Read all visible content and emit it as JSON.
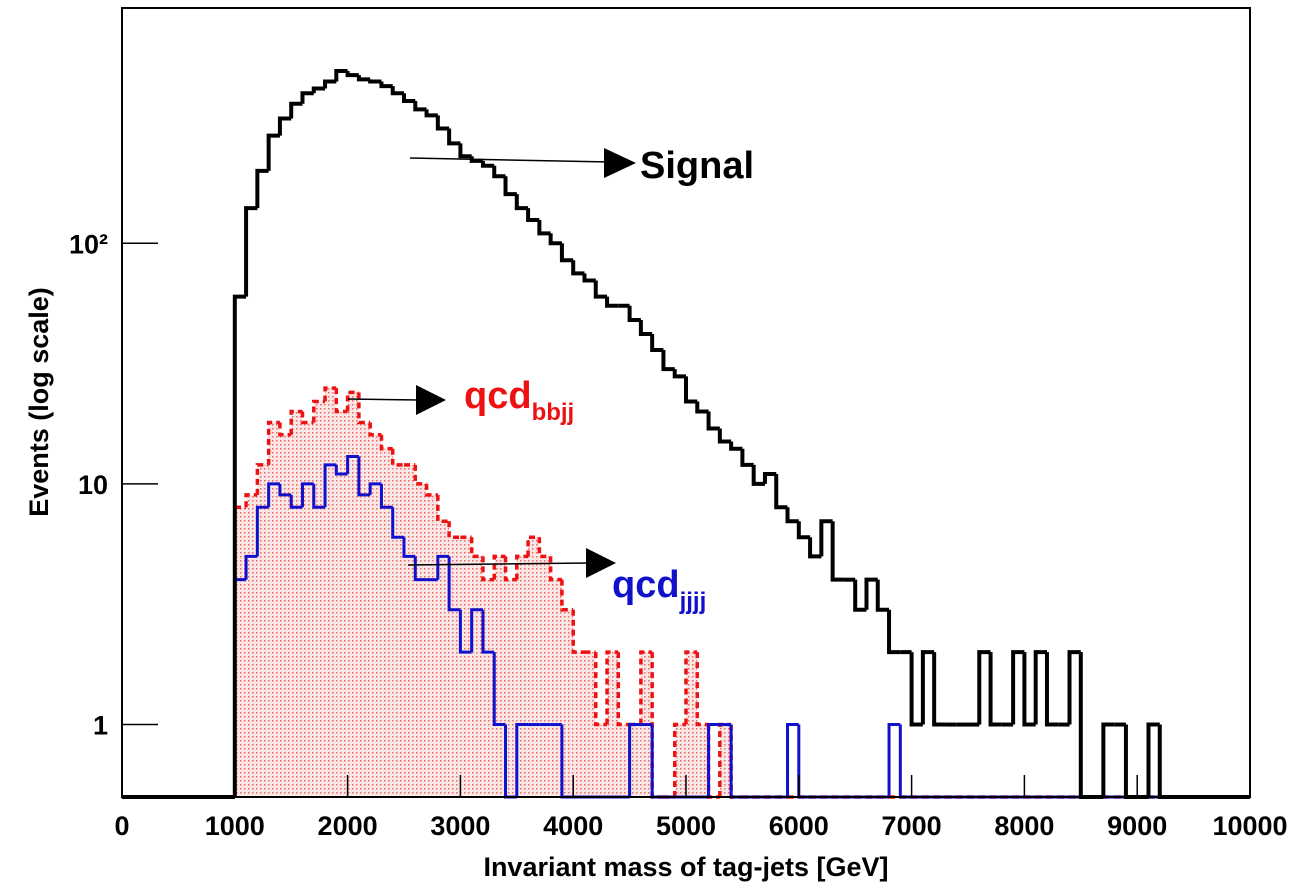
{
  "chart_data": {
    "type": "histogram",
    "xlabel": "Invariant mass of tag-jets [GeV]",
    "ylabel": "Events (log scale)",
    "log_y": true,
    "bins": [
      0,
      100,
      200,
      300,
      400,
      500,
      600,
      700,
      800,
      900,
      1000,
      1100,
      1200,
      1300,
      1400,
      1500,
      1600,
      1700,
      1800,
      1900,
      2000,
      2100,
      2200,
      2300,
      2400,
      2500,
      2600,
      2700,
      2800,
      2900,
      3000,
      3100,
      3200,
      3300,
      3400,
      3500,
      3600,
      3700,
      3800,
      3900,
      4000,
      4100,
      4200,
      4300,
      4400,
      4500,
      4600,
      4700,
      4800,
      4900,
      5000,
      5100,
      5200,
      5300,
      5400,
      5500,
      5600,
      5700,
      5800,
      5900,
      6000,
      6100,
      6200,
      6300,
      6400,
      6500,
      6600,
      6700,
      6800,
      6900,
      7000,
      7100,
      7200,
      7300,
      7400,
      7500,
      7600,
      7700,
      7800,
      7900,
      8000,
      8100,
      8200,
      8300,
      8400,
      8500,
      8600,
      8700,
      8800,
      8900,
      9000,
      9100,
      9200,
      9300,
      9400,
      9500,
      9600,
      9700,
      9800,
      9900,
      10000
    ],
    "series": [
      {
        "name": "Signal",
        "color": "#000000",
        "values": [
          0,
          0,
          0,
          0,
          0,
          0,
          0,
          0,
          0,
          0,
          60,
          140,
          200,
          280,
          330,
          380,
          420,
          440,
          470,
          520,
          500,
          480,
          470,
          450,
          420,
          390,
          360,
          340,
          300,
          260,
          230,
          220,
          210,
          190,
          160,
          140,
          125,
          110,
          100,
          85,
          75,
          70,
          60,
          55,
          55,
          48,
          42,
          36,
          30,
          28,
          22,
          20,
          17,
          15,
          14,
          12,
          10,
          11,
          8,
          7,
          6,
          5,
          7,
          4,
          4,
          3,
          4,
          3,
          2,
          2,
          1,
          2,
          1,
          1,
          1,
          1,
          2,
          1,
          1,
          2,
          1,
          2,
          1,
          1,
          2,
          0,
          0,
          1,
          1,
          0,
          0,
          1,
          0,
          0,
          0,
          0,
          0,
          0,
          0,
          0
        ]
      },
      {
        "name": "qcd_bbjj",
        "color": "#ee1111",
        "values": [
          0,
          0,
          0,
          0,
          0,
          0,
          0,
          0,
          0,
          0,
          8,
          9,
          12,
          18,
          16,
          20,
          18,
          22,
          25,
          20,
          24,
          18,
          16,
          14,
          12,
          12,
          10,
          9,
          7,
          6,
          6,
          5,
          4,
          5,
          4,
          5,
          6,
          5,
          4,
          3,
          2,
          2,
          1,
          2,
          1,
          1,
          2,
          0,
          0,
          1,
          2,
          1,
          0,
          1,
          0,
          0,
          0,
          0,
          0,
          0,
          0,
          0,
          0,
          0,
          0,
          0,
          0,
          0,
          0,
          0,
          0,
          0,
          0,
          0,
          0,
          0,
          0,
          0,
          0,
          0,
          0,
          0,
          0,
          0,
          0,
          0,
          0,
          0,
          0,
          0,
          0,
          0,
          0,
          0,
          0,
          0,
          0,
          0,
          0,
          0
        ]
      },
      {
        "name": "qcd_jjjj",
        "color": "#1111cc",
        "values": [
          0,
          0,
          0,
          0,
          0,
          0,
          0,
          0,
          0,
          0,
          4,
          5,
          8,
          10,
          9,
          8,
          10,
          8,
          12,
          11,
          13,
          9,
          10,
          8,
          6,
          5,
          4,
          4,
          5,
          3,
          2,
          3,
          2,
          1,
          0,
          1,
          1,
          1,
          1,
          0,
          0,
          0,
          0,
          0,
          0,
          1,
          1,
          0,
          0,
          0,
          0,
          0,
          1,
          1,
          0,
          0,
          0,
          0,
          0,
          1,
          0,
          0,
          0,
          0,
          0,
          0,
          0,
          0,
          1,
          0,
          0,
          0,
          0,
          0,
          0,
          0,
          0,
          0,
          0,
          0,
          0,
          0,
          0,
          0,
          0,
          0,
          0,
          0,
          0,
          0,
          0,
          0,
          0,
          0,
          0,
          0,
          0,
          0,
          0,
          0
        ]
      }
    ],
    "annotations": [
      {
        "text": "Signal"
      },
      {
        "text": "qcd",
        "sub": "bbjj"
      },
      {
        "text": "qcd",
        "sub": "jjjj"
      }
    ],
    "xlim": [
      0,
      10000
    ],
    "xticks": [
      0,
      1000,
      2000,
      3000,
      4000,
      5000,
      6000,
      7000,
      8000,
      9000,
      10000
    ],
    "ylim": [
      0.5,
      950
    ],
    "yticks": [
      1,
      10,
      {
        "value": 100,
        "label": "10²"
      }
    ]
  }
}
